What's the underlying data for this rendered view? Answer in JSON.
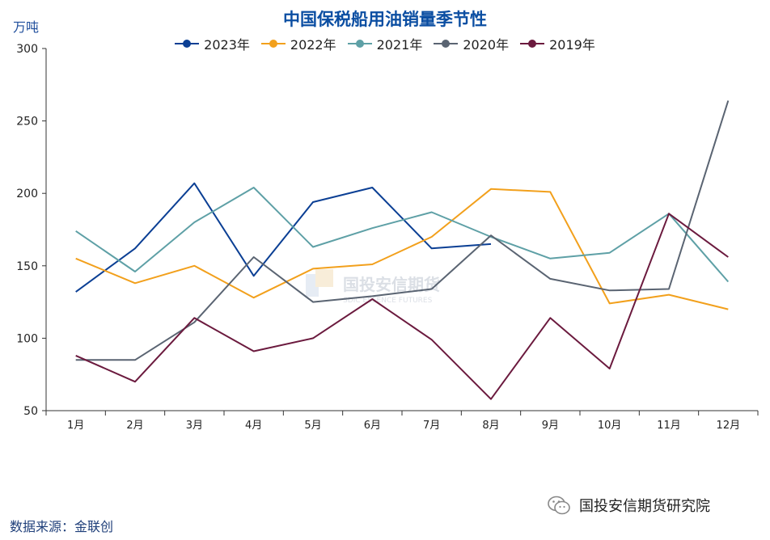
{
  "title": "中国保税船用油销量季节性",
  "unit_label": "万吨",
  "source_label": "数据来源：金联创",
  "brand_label": "国投安信期货研究院",
  "watermark": {
    "name": "国投安信期货",
    "sub": "SDIC ESSENCE FUTURES"
  },
  "chart_data": {
    "type": "line",
    "categories": [
      "1月",
      "2月",
      "3月",
      "4月",
      "5月",
      "6月",
      "7月",
      "8月",
      "9月",
      "10月",
      "11月",
      "12月"
    ],
    "ylim": [
      50,
      300
    ],
    "yticks": [
      50,
      100,
      150,
      200,
      250,
      300
    ],
    "grid": false,
    "legend_position": "top-center",
    "series": [
      {
        "name": "2023年",
        "color": "#0b3f94",
        "values": [
          132,
          162,
          207,
          143,
          194,
          204,
          162,
          165,
          null,
          null,
          null,
          null
        ]
      },
      {
        "name": "2022年",
        "color": "#f2a01c",
        "values": [
          155,
          138,
          150,
          128,
          148,
          151,
          170,
          203,
          201,
          124,
          130,
          120
        ]
      },
      {
        "name": "2021年",
        "color": "#5ea0a6",
        "values": [
          174,
          146,
          180,
          204,
          163,
          176,
          187,
          170,
          155,
          159,
          186,
          139
        ]
      },
      {
        "name": "2020年",
        "color": "#5a6472",
        "values": [
          85,
          85,
          111,
          156,
          125,
          129,
          134,
          171,
          141,
          133,
          134,
          264
        ]
      },
      {
        "name": "2019年",
        "color": "#6b1a3e",
        "values": [
          88,
          70,
          114,
          91,
          100,
          127,
          99,
          58,
          114,
          79,
          186,
          156
        ]
      }
    ]
  }
}
